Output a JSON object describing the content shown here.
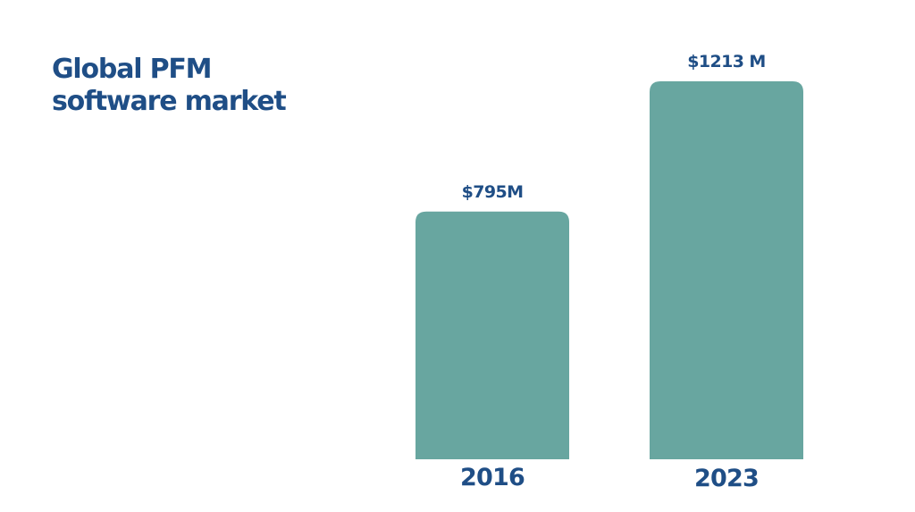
{
  "title": {
    "line1": "Global PFM",
    "line2": "software market"
  },
  "chart_data": {
    "type": "bar",
    "categories": [
      "2016",
      "2023"
    ],
    "values": [
      795,
      1213
    ],
    "value_labels": [
      "$795M",
      "$1213 M"
    ],
    "bar_color": "#68a6a0",
    "text_color": "#1f4e86",
    "grid": false,
    "ylim": [
      0,
      1300
    ]
  }
}
